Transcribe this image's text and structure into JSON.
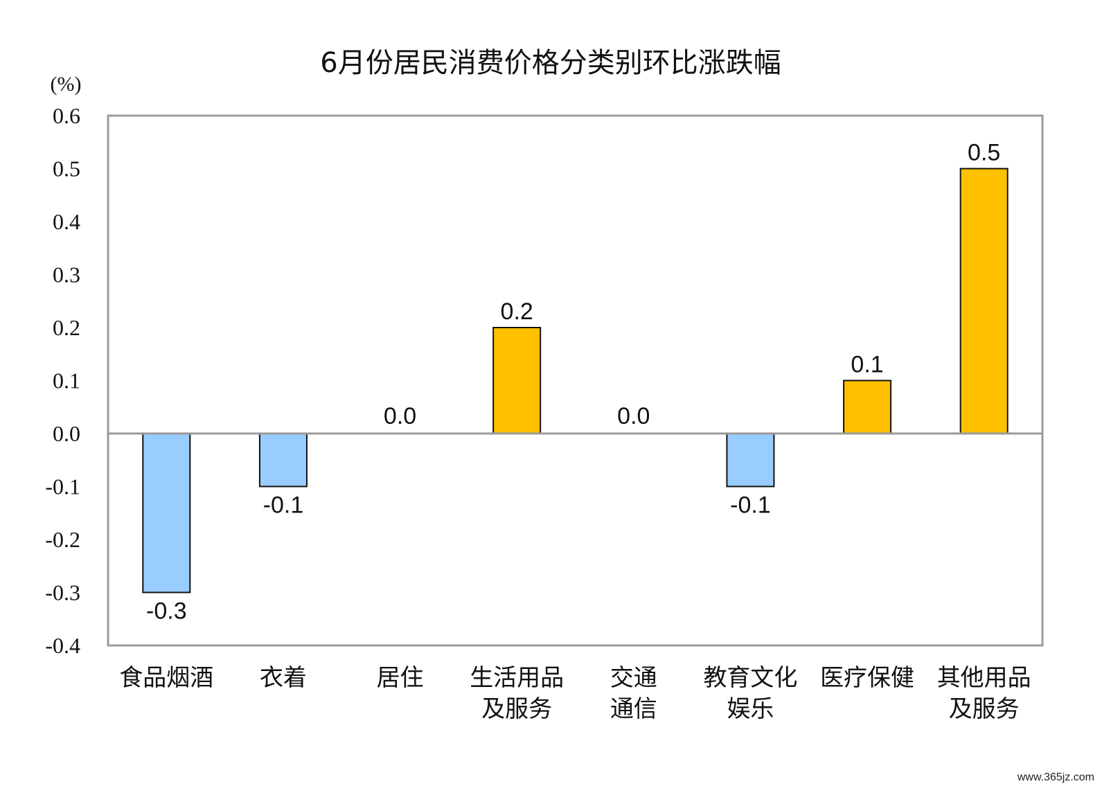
{
  "chart_data": {
    "type": "bar",
    "title": "6月份居民消费价格分类别环比涨跌幅",
    "ylabel": "(%)",
    "xlabel": "",
    "ylim": [
      -0.4,
      0.6
    ],
    "yticks": [
      "0.6",
      "0.5",
      "0.4",
      "0.3",
      "0.2",
      "0.1",
      "0.0",
      "-0.1",
      "-0.2",
      "-0.3",
      "-0.4"
    ],
    "categories": [
      [
        "食品烟酒"
      ],
      [
        "衣着"
      ],
      [
        "居住"
      ],
      [
        "生活用品",
        "及服务"
      ],
      [
        "交通",
        "通信"
      ],
      [
        "教育文化",
        "娱乐"
      ],
      [
        "医疗保健"
      ],
      [
        "其他用品",
        "及服务"
      ]
    ],
    "values": [
      -0.3,
      -0.1,
      0.0,
      0.2,
      0.0,
      -0.1,
      0.1,
      0.5
    ],
    "value_labels": [
      "-0.3",
      "-0.1",
      "0.0",
      "0.2",
      "0.0",
      "-0.1",
      "0.1",
      "0.5"
    ],
    "colors": {
      "positive": "#ffc000",
      "negative": "#99ccff",
      "bar_outline": "#111111",
      "frame": "#9a9a9a"
    },
    "grid": false,
    "legend": "none"
  },
  "watermark": "www.365jz.com"
}
